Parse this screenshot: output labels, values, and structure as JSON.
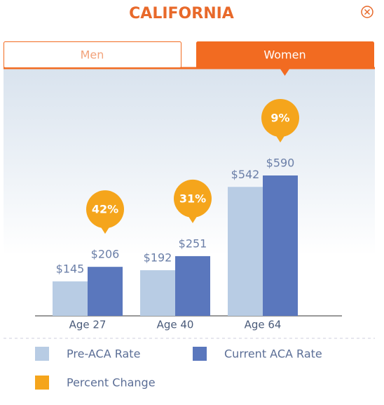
{
  "chart_data": {
    "type": "bar",
    "title": "CALIFORNIA",
    "tabs": [
      "Men",
      "Women"
    ],
    "active_tab": 1,
    "categories": [
      "Age 27",
      "Age 40",
      "Age 64"
    ],
    "series": [
      {
        "name": "Pre-ACA Rate",
        "color": "#b8cce4",
        "mark": "bar",
        "values": [
          145,
          192,
          542
        ],
        "value_labels": [
          "$145",
          "$192",
          "$542"
        ]
      },
      {
        "name": "Current ACA Rate",
        "color": "#5a77bd",
        "mark": "bar",
        "values": [
          206,
          251,
          590
        ],
        "value_labels": [
          "$206",
          "$251",
          "$590"
        ]
      },
      {
        "name": "Percent Change",
        "color": "#f5a51c",
        "mark": "bubble",
        "values": [
          42,
          31,
          9
        ],
        "value_labels": [
          "42%",
          "31%",
          "9%"
        ]
      }
    ]
  }
}
